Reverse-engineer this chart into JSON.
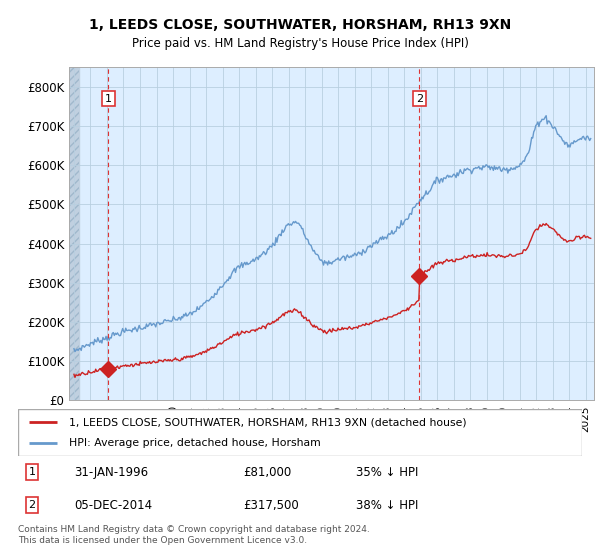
{
  "title1": "1, LEEDS CLOSE, SOUTHWATER, HORSHAM, RH13 9XN",
  "title2": "Price paid vs. HM Land Registry's House Price Index (HPI)",
  "background_color": "#ddeeff",
  "hatch_region_color": "#c8d8e8",
  "grid_color": "#b8cfe0",
  "ylim": [
    0,
    850000
  ],
  "yticks": [
    0,
    100000,
    200000,
    300000,
    400000,
    500000,
    600000,
    700000,
    800000
  ],
  "ytick_labels": [
    "£0",
    "£100K",
    "£200K",
    "£300K",
    "£400K",
    "£500K",
    "£600K",
    "£700K",
    "£800K"
  ],
  "xlim_left": 1993.7,
  "xlim_right": 2025.5,
  "hatch_end": 1994.3,
  "sale1_date": 1996.08,
  "sale1_price": 81000,
  "sale2_date": 2014.92,
  "sale2_price": 317500,
  "legend_line1": "1, LEEDS CLOSE, SOUTHWATER, HORSHAM, RH13 9XN (detached house)",
  "legend_line2": "HPI: Average price, detached house, Horsham",
  "ann1_label": "1",
  "ann1_date": "31-JAN-1996",
  "ann1_price": "£81,000",
  "ann1_hpi": "35% ↓ HPI",
  "ann2_label": "2",
  "ann2_date": "05-DEC-2014",
  "ann2_price": "£317,500",
  "ann2_hpi": "38% ↓ HPI",
  "footer": "Contains HM Land Registry data © Crown copyright and database right 2024.\nThis data is licensed under the Open Government Licence v3.0.",
  "red_color": "#cc2222",
  "blue_color": "#6699cc",
  "vline_color": "#dd3333",
  "marker_color": "#cc2222",
  "label_box_color": "#dd3333"
}
